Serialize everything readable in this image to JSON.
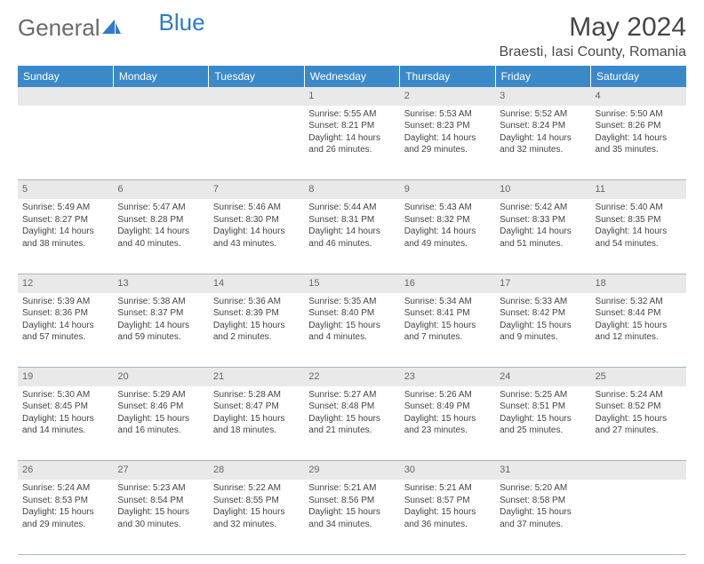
{
  "logo": {
    "text1": "General",
    "text2": "Blue"
  },
  "title": "May 2024",
  "location": "Braesti, Iasi County, Romania",
  "header_bg": "#3b89c9",
  "daynum_bg": "#e9e9e9",
  "divider_color": "#a9b8c6",
  "days": [
    "Sunday",
    "Monday",
    "Tuesday",
    "Wednesday",
    "Thursday",
    "Friday",
    "Saturday"
  ],
  "weeks": [
    [
      null,
      null,
      null,
      {
        "n": "1",
        "sr": "5:55 AM",
        "ss": "8:21 PM",
        "dl1": "14 hours",
        "dl2": "and 26 minutes."
      },
      {
        "n": "2",
        "sr": "5:53 AM",
        "ss": "8:23 PM",
        "dl1": "14 hours",
        "dl2": "and 29 minutes."
      },
      {
        "n": "3",
        "sr": "5:52 AM",
        "ss": "8:24 PM",
        "dl1": "14 hours",
        "dl2": "and 32 minutes."
      },
      {
        "n": "4",
        "sr": "5:50 AM",
        "ss": "8:26 PM",
        "dl1": "14 hours",
        "dl2": "and 35 minutes."
      }
    ],
    [
      {
        "n": "5",
        "sr": "5:49 AM",
        "ss": "8:27 PM",
        "dl1": "14 hours",
        "dl2": "and 38 minutes."
      },
      {
        "n": "6",
        "sr": "5:47 AM",
        "ss": "8:28 PM",
        "dl1": "14 hours",
        "dl2": "and 40 minutes."
      },
      {
        "n": "7",
        "sr": "5:46 AM",
        "ss": "8:30 PM",
        "dl1": "14 hours",
        "dl2": "and 43 minutes."
      },
      {
        "n": "8",
        "sr": "5:44 AM",
        "ss": "8:31 PM",
        "dl1": "14 hours",
        "dl2": "and 46 minutes."
      },
      {
        "n": "9",
        "sr": "5:43 AM",
        "ss": "8:32 PM",
        "dl1": "14 hours",
        "dl2": "and 49 minutes."
      },
      {
        "n": "10",
        "sr": "5:42 AM",
        "ss": "8:33 PM",
        "dl1": "14 hours",
        "dl2": "and 51 minutes."
      },
      {
        "n": "11",
        "sr": "5:40 AM",
        "ss": "8:35 PM",
        "dl1": "14 hours",
        "dl2": "and 54 minutes."
      }
    ],
    [
      {
        "n": "12",
        "sr": "5:39 AM",
        "ss": "8:36 PM",
        "dl1": "14 hours",
        "dl2": "and 57 minutes."
      },
      {
        "n": "13",
        "sr": "5:38 AM",
        "ss": "8:37 PM",
        "dl1": "14 hours",
        "dl2": "and 59 minutes."
      },
      {
        "n": "14",
        "sr": "5:36 AM",
        "ss": "8:39 PM",
        "dl1": "15 hours",
        "dl2": "and 2 minutes."
      },
      {
        "n": "15",
        "sr": "5:35 AM",
        "ss": "8:40 PM",
        "dl1": "15 hours",
        "dl2": "and 4 minutes."
      },
      {
        "n": "16",
        "sr": "5:34 AM",
        "ss": "8:41 PM",
        "dl1": "15 hours",
        "dl2": "and 7 minutes."
      },
      {
        "n": "17",
        "sr": "5:33 AM",
        "ss": "8:42 PM",
        "dl1": "15 hours",
        "dl2": "and 9 minutes."
      },
      {
        "n": "18",
        "sr": "5:32 AM",
        "ss": "8:44 PM",
        "dl1": "15 hours",
        "dl2": "and 12 minutes."
      }
    ],
    [
      {
        "n": "19",
        "sr": "5:30 AM",
        "ss": "8:45 PM",
        "dl1": "15 hours",
        "dl2": "and 14 minutes."
      },
      {
        "n": "20",
        "sr": "5:29 AM",
        "ss": "8:46 PM",
        "dl1": "15 hours",
        "dl2": "and 16 minutes."
      },
      {
        "n": "21",
        "sr": "5:28 AM",
        "ss": "8:47 PM",
        "dl1": "15 hours",
        "dl2": "and 18 minutes."
      },
      {
        "n": "22",
        "sr": "5:27 AM",
        "ss": "8:48 PM",
        "dl1": "15 hours",
        "dl2": "and 21 minutes."
      },
      {
        "n": "23",
        "sr": "5:26 AM",
        "ss": "8:49 PM",
        "dl1": "15 hours",
        "dl2": "and 23 minutes."
      },
      {
        "n": "24",
        "sr": "5:25 AM",
        "ss": "8:51 PM",
        "dl1": "15 hours",
        "dl2": "and 25 minutes."
      },
      {
        "n": "25",
        "sr": "5:24 AM",
        "ss": "8:52 PM",
        "dl1": "15 hours",
        "dl2": "and 27 minutes."
      }
    ],
    [
      {
        "n": "26",
        "sr": "5:24 AM",
        "ss": "8:53 PM",
        "dl1": "15 hours",
        "dl2": "and 29 minutes."
      },
      {
        "n": "27",
        "sr": "5:23 AM",
        "ss": "8:54 PM",
        "dl1": "15 hours",
        "dl2": "and 30 minutes."
      },
      {
        "n": "28",
        "sr": "5:22 AM",
        "ss": "8:55 PM",
        "dl1": "15 hours",
        "dl2": "and 32 minutes."
      },
      {
        "n": "29",
        "sr": "5:21 AM",
        "ss": "8:56 PM",
        "dl1": "15 hours",
        "dl2": "and 34 minutes."
      },
      {
        "n": "30",
        "sr": "5:21 AM",
        "ss": "8:57 PM",
        "dl1": "15 hours",
        "dl2": "and 36 minutes."
      },
      {
        "n": "31",
        "sr": "5:20 AM",
        "ss": "8:58 PM",
        "dl1": "15 hours",
        "dl2": "and 37 minutes."
      },
      null
    ]
  ]
}
